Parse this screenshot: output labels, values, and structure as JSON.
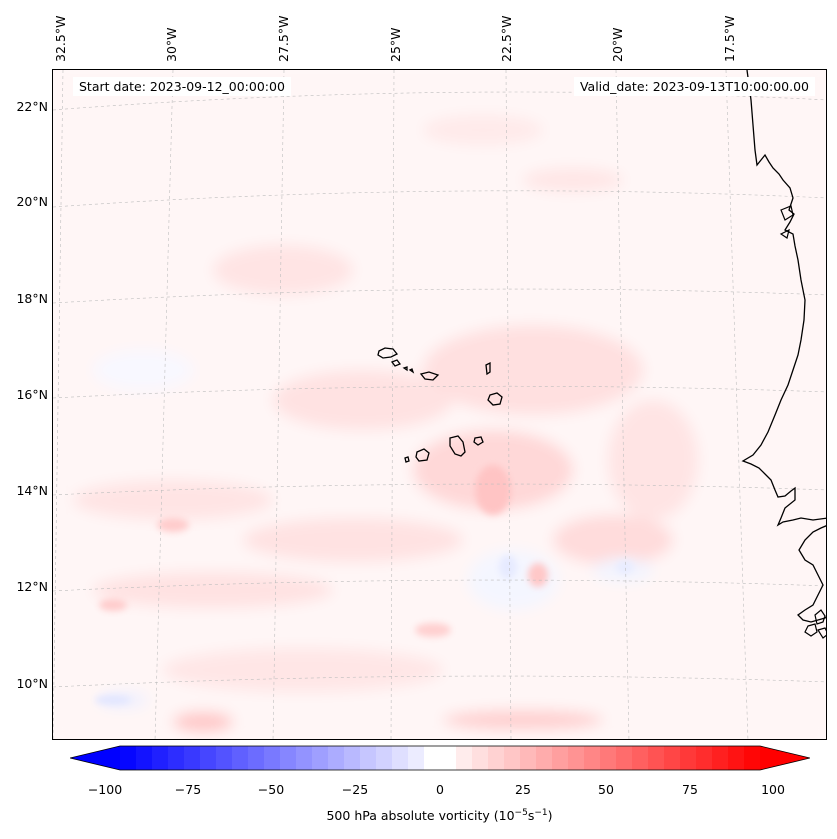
{
  "header": {
    "start_date": "Start date: 2023-09-12_00:00:00",
    "valid_date": "Valid_date: 2023-09-13T10:00:00.00"
  },
  "map": {
    "longitude_labels": [
      "32.5°W",
      "30°W",
      "27.5°W",
      "25°W",
      "22.5°W",
      "20°W",
      "17.5°W"
    ],
    "latitude_labels": [
      "22°N",
      "20°N",
      "18°N",
      "16°N",
      "14°N",
      "12°N",
      "10°N"
    ],
    "field": "500 hPa absolute vorticity",
    "background_color": "#fff8f8",
    "positive_color": "#ff0000",
    "negative_color": "#0000ff"
  },
  "colorbar": {
    "ticks": [
      "−100",
      "−75",
      "−50",
      "−25",
      "0",
      "25",
      "50",
      "75",
      "100"
    ],
    "range": [
      -100,
      100
    ],
    "label_main": "500 hPa absolute vorticity (10",
    "label_exp1": "−5",
    "label_mid": "s",
    "label_exp2": "−1",
    "label_end": ")"
  }
}
